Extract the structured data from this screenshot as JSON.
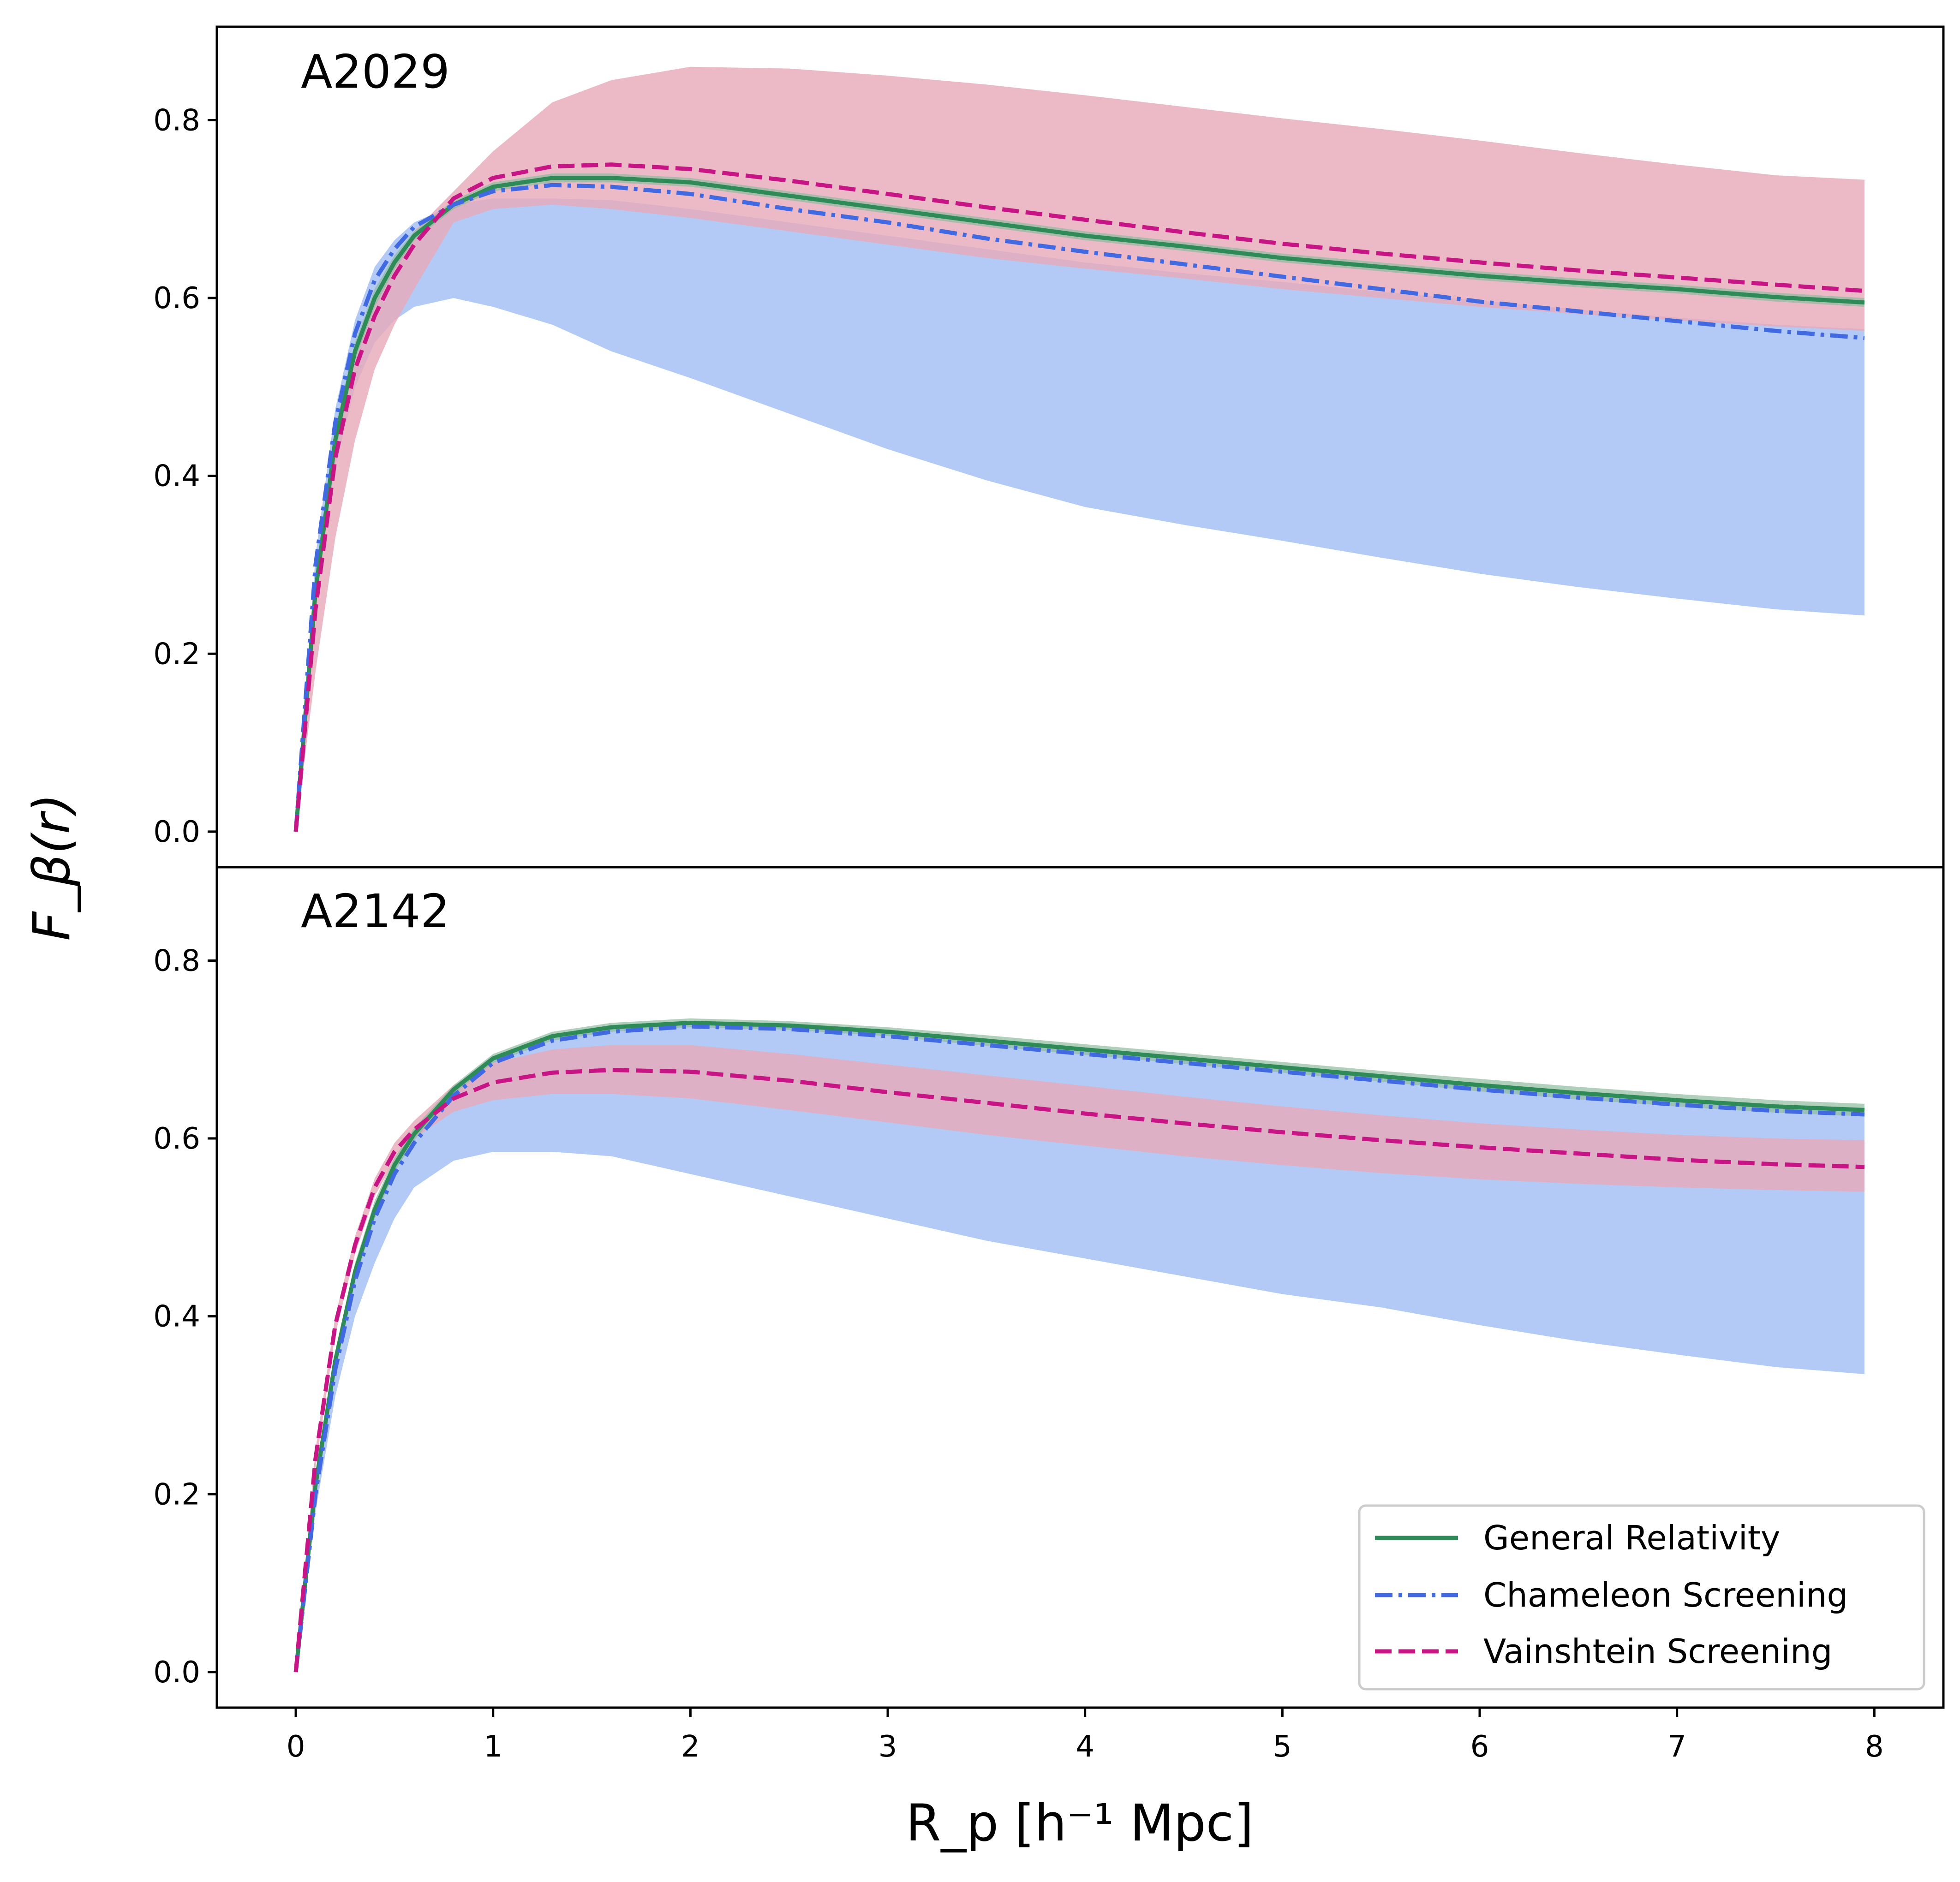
{
  "chart_data": [
    {
      "type": "line",
      "panel_label": "A2029",
      "xlim": [
        -0.4,
        8.35
      ],
      "ylim": [
        -0.04,
        0.905
      ],
      "yticks": [
        "0.0",
        "0.2",
        "0.4",
        "0.6",
        "0.8"
      ],
      "series": [
        {
          "name": "General Relativity",
          "style": "solid",
          "color": "#2e8b57",
          "x": [
            0,
            0.1,
            0.2,
            0.3,
            0.4,
            0.5,
            0.6,
            0.8,
            1.0,
            1.3,
            1.6,
            2.0,
            2.5,
            3.0,
            3.5,
            4.0,
            4.5,
            5.0,
            5.5,
            6.0,
            6.5,
            7.0,
            7.5,
            7.95
          ],
          "y": [
            0.0,
            0.27,
            0.44,
            0.54,
            0.6,
            0.64,
            0.67,
            0.705,
            0.725,
            0.735,
            0.735,
            0.73,
            0.715,
            0.7,
            0.685,
            0.67,
            0.658,
            0.645,
            0.635,
            0.625,
            0.617,
            0.61,
            0.601,
            0.595
          ],
          "band_upper": [
            0.0,
            0.285,
            0.455,
            0.55,
            0.61,
            0.648,
            0.675,
            0.71,
            0.73,
            0.74,
            0.74,
            0.735,
            0.72,
            0.705,
            0.69,
            0.675,
            0.663,
            0.65,
            0.64,
            0.63,
            0.622,
            0.615,
            0.606,
            0.6
          ],
          "band_lower": [
            0.0,
            0.255,
            0.425,
            0.53,
            0.59,
            0.632,
            0.665,
            0.7,
            0.72,
            0.73,
            0.73,
            0.725,
            0.71,
            0.695,
            0.68,
            0.665,
            0.653,
            0.64,
            0.63,
            0.62,
            0.612,
            0.605,
            0.596,
            0.59
          ]
        },
        {
          "name": "Chameleon Screening",
          "style": "dashdot",
          "color": "#4169e1",
          "x": [
            0,
            0.1,
            0.2,
            0.3,
            0.4,
            0.5,
            0.6,
            0.8,
            1.0,
            1.3,
            1.6,
            2.0,
            2.5,
            3.0,
            3.5,
            4.0,
            4.5,
            5.0,
            5.5,
            6.0,
            6.5,
            7.0,
            7.5,
            7.95
          ],
          "y": [
            0.0,
            0.3,
            0.46,
            0.56,
            0.62,
            0.655,
            0.68,
            0.705,
            0.72,
            0.727,
            0.725,
            0.717,
            0.7,
            0.685,
            0.667,
            0.652,
            0.638,
            0.624,
            0.61,
            0.596,
            0.585,
            0.574,
            0.563,
            0.555
          ],
          "band_upper": [
            0.0,
            0.31,
            0.475,
            0.575,
            0.635,
            0.665,
            0.685,
            0.705,
            0.712,
            0.712,
            0.71,
            0.7,
            0.685,
            0.67,
            0.655,
            0.64,
            0.628,
            0.618,
            0.607,
            0.597,
            0.587,
            0.578,
            0.57,
            0.565
          ],
          "band_lower": [
            0.0,
            0.27,
            0.41,
            0.5,
            0.55,
            0.575,
            0.59,
            0.6,
            0.59,
            0.57,
            0.54,
            0.51,
            0.47,
            0.43,
            0.395,
            0.365,
            0.345,
            0.327,
            0.308,
            0.29,
            0.275,
            0.262,
            0.25,
            0.243
          ]
        },
        {
          "name": "Vainshtein Screening",
          "style": "dashed",
          "color": "#c71585",
          "x": [
            0,
            0.1,
            0.2,
            0.3,
            0.4,
            0.5,
            0.6,
            0.8,
            1.0,
            1.3,
            1.6,
            2.0,
            2.5,
            3.0,
            3.5,
            4.0,
            4.5,
            5.0,
            5.5,
            6.0,
            6.5,
            7.0,
            7.5,
            7.95
          ],
          "y": [
            0.0,
            0.25,
            0.42,
            0.52,
            0.58,
            0.625,
            0.66,
            0.712,
            0.735,
            0.748,
            0.75,
            0.745,
            0.732,
            0.717,
            0.702,
            0.688,
            0.674,
            0.661,
            0.65,
            0.64,
            0.631,
            0.623,
            0.615,
            0.608
          ],
          "band_upper": [
            0.0,
            0.27,
            0.44,
            0.54,
            0.6,
            0.64,
            0.675,
            0.72,
            0.765,
            0.82,
            0.845,
            0.86,
            0.858,
            0.85,
            0.84,
            0.828,
            0.815,
            0.802,
            0.79,
            0.777,
            0.763,
            0.75,
            0.738,
            0.733
          ],
          "band_lower": [
            0.0,
            0.18,
            0.33,
            0.44,
            0.52,
            0.57,
            0.61,
            0.685,
            0.7,
            0.705,
            0.7,
            0.69,
            0.675,
            0.66,
            0.645,
            0.633,
            0.622,
            0.61,
            0.6,
            0.59,
            0.582,
            0.575,
            0.568,
            0.563
          ]
        }
      ]
    },
    {
      "type": "line",
      "panel_label": "A2142",
      "xlim": [
        -0.4,
        8.35
      ],
      "ylim": [
        -0.04,
        0.905
      ],
      "yticks": [
        "0.0",
        "0.2",
        "0.4",
        "0.6",
        "0.8"
      ],
      "xticks": [
        "0",
        "1",
        "2",
        "3",
        "4",
        "5",
        "6",
        "7",
        "8"
      ],
      "series": [
        {
          "name": "General Relativity",
          "style": "solid",
          "color": "#2e8b57",
          "x": [
            0,
            0.1,
            0.2,
            0.3,
            0.4,
            0.5,
            0.6,
            0.8,
            1.0,
            1.3,
            1.6,
            2.0,
            2.5,
            3.0,
            3.5,
            4.0,
            4.5,
            5.0,
            5.5,
            6.0,
            6.5,
            7.0,
            7.5,
            7.95
          ],
          "y": [
            0.0,
            0.21,
            0.35,
            0.45,
            0.52,
            0.57,
            0.605,
            0.655,
            0.69,
            0.715,
            0.725,
            0.73,
            0.727,
            0.72,
            0.71,
            0.7,
            0.69,
            0.68,
            0.67,
            0.66,
            0.651,
            0.643,
            0.636,
            0.632
          ],
          "band_upper": [
            0.0,
            0.22,
            0.36,
            0.46,
            0.53,
            0.578,
            0.612,
            0.66,
            0.695,
            0.72,
            0.73,
            0.735,
            0.732,
            0.725,
            0.716,
            0.706,
            0.696,
            0.686,
            0.676,
            0.667,
            0.658,
            0.65,
            0.643,
            0.639
          ],
          "band_lower": [
            0.0,
            0.2,
            0.34,
            0.44,
            0.51,
            0.562,
            0.598,
            0.65,
            0.685,
            0.71,
            0.72,
            0.725,
            0.722,
            0.715,
            0.704,
            0.694,
            0.684,
            0.674,
            0.664,
            0.653,
            0.644,
            0.636,
            0.629,
            0.625
          ]
        },
        {
          "name": "Chameleon Screening",
          "style": "dashdot",
          "color": "#4169e1",
          "x": [
            0,
            0.1,
            0.2,
            0.3,
            0.4,
            0.5,
            0.6,
            0.8,
            1.0,
            1.3,
            1.6,
            2.0,
            2.5,
            3.0,
            3.5,
            4.0,
            4.5,
            5.0,
            5.5,
            6.0,
            6.5,
            7.0,
            7.5,
            7.95
          ],
          "y": [
            0.0,
            0.2,
            0.34,
            0.44,
            0.51,
            0.56,
            0.595,
            0.648,
            0.685,
            0.71,
            0.72,
            0.726,
            0.723,
            0.715,
            0.705,
            0.695,
            0.685,
            0.675,
            0.665,
            0.655,
            0.646,
            0.638,
            0.631,
            0.627
          ],
          "band_upper": [
            0.0,
            0.21,
            0.35,
            0.45,
            0.52,
            0.57,
            0.603,
            0.655,
            0.69,
            0.715,
            0.725,
            0.728,
            0.725,
            0.718,
            0.708,
            0.698,
            0.688,
            0.678,
            0.668,
            0.658,
            0.649,
            0.641,
            0.634,
            0.63
          ],
          "band_lower": [
            0.0,
            0.18,
            0.31,
            0.4,
            0.46,
            0.51,
            0.545,
            0.575,
            0.585,
            0.585,
            0.58,
            0.56,
            0.535,
            0.51,
            0.485,
            0.465,
            0.445,
            0.425,
            0.41,
            0.39,
            0.372,
            0.357,
            0.343,
            0.335
          ]
        },
        {
          "name": "Vainshtein Screening",
          "style": "dashed",
          "color": "#c71585",
          "x": [
            0,
            0.1,
            0.2,
            0.3,
            0.4,
            0.5,
            0.6,
            0.8,
            1.0,
            1.3,
            1.6,
            2.0,
            2.5,
            3.0,
            3.5,
            4.0,
            4.5,
            5.0,
            5.5,
            6.0,
            6.5,
            7.0,
            7.5,
            7.95
          ],
          "y": [
            0.0,
            0.24,
            0.39,
            0.48,
            0.545,
            0.585,
            0.61,
            0.645,
            0.663,
            0.674,
            0.677,
            0.675,
            0.665,
            0.652,
            0.64,
            0.628,
            0.617,
            0.607,
            0.598,
            0.59,
            0.583,
            0.576,
            0.571,
            0.568
          ],
          "band_upper": [
            0.0,
            0.25,
            0.4,
            0.49,
            0.555,
            0.595,
            0.62,
            0.66,
            0.685,
            0.7,
            0.705,
            0.705,
            0.695,
            0.683,
            0.671,
            0.659,
            0.647,
            0.636,
            0.626,
            0.617,
            0.61,
            0.604,
            0.6,
            0.598
          ],
          "band_lower": [
            0.0,
            0.23,
            0.38,
            0.47,
            0.535,
            0.575,
            0.6,
            0.63,
            0.643,
            0.65,
            0.65,
            0.645,
            0.632,
            0.618,
            0.604,
            0.592,
            0.58,
            0.57,
            0.561,
            0.554,
            0.549,
            0.545,
            0.542,
            0.54
          ]
        }
      ]
    }
  ],
  "axes": {
    "ylabel": "F_β(r)",
    "xlabel": "R_p [h⁻¹ Mpc]"
  },
  "legend": {
    "location": "lower-right",
    "entries": [
      {
        "label": "General Relativity",
        "style": "solid",
        "color": "#2e8b57"
      },
      {
        "label": "Chameleon Screening",
        "style": "dashdot",
        "color": "#4169e1"
      },
      {
        "label": "Vainshtein Screening",
        "style": "dashed",
        "color": "#c71585"
      }
    ]
  },
  "colors": {
    "green_band": "#8fbc9f",
    "blue_band": "#aec7f4",
    "pink_band": "#e8aabb",
    "blue_band_alpha": 0.95,
    "pink_band_alpha": 0.82
  }
}
